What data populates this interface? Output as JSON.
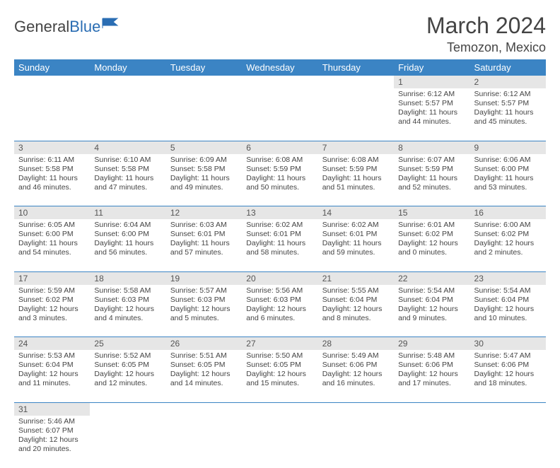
{
  "brand": {
    "part1": "General",
    "part2": "Blue"
  },
  "title": "March 2024",
  "location": "Temozon, Mexico",
  "colors": {
    "header_bg": "#3b84c4",
    "header_text": "#ffffff",
    "daynum_bg": "#e6e6e6",
    "row_divider": "#3b84c4",
    "text": "#444444",
    "brand_blue": "#2a6db3"
  },
  "weekdays": [
    "Sunday",
    "Monday",
    "Tuesday",
    "Wednesday",
    "Thursday",
    "Friday",
    "Saturday"
  ],
  "weeks": [
    [
      null,
      null,
      null,
      null,
      null,
      {
        "n": "1",
        "sr": "Sunrise: 6:12 AM",
        "ss": "Sunset: 5:57 PM",
        "dl": "Daylight: 11 hours and 44 minutes."
      },
      {
        "n": "2",
        "sr": "Sunrise: 6:12 AM",
        "ss": "Sunset: 5:57 PM",
        "dl": "Daylight: 11 hours and 45 minutes."
      }
    ],
    [
      {
        "n": "3",
        "sr": "Sunrise: 6:11 AM",
        "ss": "Sunset: 5:58 PM",
        "dl": "Daylight: 11 hours and 46 minutes."
      },
      {
        "n": "4",
        "sr": "Sunrise: 6:10 AM",
        "ss": "Sunset: 5:58 PM",
        "dl": "Daylight: 11 hours and 47 minutes."
      },
      {
        "n": "5",
        "sr": "Sunrise: 6:09 AM",
        "ss": "Sunset: 5:58 PM",
        "dl": "Daylight: 11 hours and 49 minutes."
      },
      {
        "n": "6",
        "sr": "Sunrise: 6:08 AM",
        "ss": "Sunset: 5:59 PM",
        "dl": "Daylight: 11 hours and 50 minutes."
      },
      {
        "n": "7",
        "sr": "Sunrise: 6:08 AM",
        "ss": "Sunset: 5:59 PM",
        "dl": "Daylight: 11 hours and 51 minutes."
      },
      {
        "n": "8",
        "sr": "Sunrise: 6:07 AM",
        "ss": "Sunset: 5:59 PM",
        "dl": "Daylight: 11 hours and 52 minutes."
      },
      {
        "n": "9",
        "sr": "Sunrise: 6:06 AM",
        "ss": "Sunset: 6:00 PM",
        "dl": "Daylight: 11 hours and 53 minutes."
      }
    ],
    [
      {
        "n": "10",
        "sr": "Sunrise: 6:05 AM",
        "ss": "Sunset: 6:00 PM",
        "dl": "Daylight: 11 hours and 54 minutes."
      },
      {
        "n": "11",
        "sr": "Sunrise: 6:04 AM",
        "ss": "Sunset: 6:00 PM",
        "dl": "Daylight: 11 hours and 56 minutes."
      },
      {
        "n": "12",
        "sr": "Sunrise: 6:03 AM",
        "ss": "Sunset: 6:01 PM",
        "dl": "Daylight: 11 hours and 57 minutes."
      },
      {
        "n": "13",
        "sr": "Sunrise: 6:02 AM",
        "ss": "Sunset: 6:01 PM",
        "dl": "Daylight: 11 hours and 58 minutes."
      },
      {
        "n": "14",
        "sr": "Sunrise: 6:02 AM",
        "ss": "Sunset: 6:01 PM",
        "dl": "Daylight: 11 hours and 59 minutes."
      },
      {
        "n": "15",
        "sr": "Sunrise: 6:01 AM",
        "ss": "Sunset: 6:02 PM",
        "dl": "Daylight: 12 hours and 0 minutes."
      },
      {
        "n": "16",
        "sr": "Sunrise: 6:00 AM",
        "ss": "Sunset: 6:02 PM",
        "dl": "Daylight: 12 hours and 2 minutes."
      }
    ],
    [
      {
        "n": "17",
        "sr": "Sunrise: 5:59 AM",
        "ss": "Sunset: 6:02 PM",
        "dl": "Daylight: 12 hours and 3 minutes."
      },
      {
        "n": "18",
        "sr": "Sunrise: 5:58 AM",
        "ss": "Sunset: 6:03 PM",
        "dl": "Daylight: 12 hours and 4 minutes."
      },
      {
        "n": "19",
        "sr": "Sunrise: 5:57 AM",
        "ss": "Sunset: 6:03 PM",
        "dl": "Daylight: 12 hours and 5 minutes."
      },
      {
        "n": "20",
        "sr": "Sunrise: 5:56 AM",
        "ss": "Sunset: 6:03 PM",
        "dl": "Daylight: 12 hours and 6 minutes."
      },
      {
        "n": "21",
        "sr": "Sunrise: 5:55 AM",
        "ss": "Sunset: 6:04 PM",
        "dl": "Daylight: 12 hours and 8 minutes."
      },
      {
        "n": "22",
        "sr": "Sunrise: 5:54 AM",
        "ss": "Sunset: 6:04 PM",
        "dl": "Daylight: 12 hours and 9 minutes."
      },
      {
        "n": "23",
        "sr": "Sunrise: 5:54 AM",
        "ss": "Sunset: 6:04 PM",
        "dl": "Daylight: 12 hours and 10 minutes."
      }
    ],
    [
      {
        "n": "24",
        "sr": "Sunrise: 5:53 AM",
        "ss": "Sunset: 6:04 PM",
        "dl": "Daylight: 12 hours and 11 minutes."
      },
      {
        "n": "25",
        "sr": "Sunrise: 5:52 AM",
        "ss": "Sunset: 6:05 PM",
        "dl": "Daylight: 12 hours and 12 minutes."
      },
      {
        "n": "26",
        "sr": "Sunrise: 5:51 AM",
        "ss": "Sunset: 6:05 PM",
        "dl": "Daylight: 12 hours and 14 minutes."
      },
      {
        "n": "27",
        "sr": "Sunrise: 5:50 AM",
        "ss": "Sunset: 6:05 PM",
        "dl": "Daylight: 12 hours and 15 minutes."
      },
      {
        "n": "28",
        "sr": "Sunrise: 5:49 AM",
        "ss": "Sunset: 6:06 PM",
        "dl": "Daylight: 12 hours and 16 minutes."
      },
      {
        "n": "29",
        "sr": "Sunrise: 5:48 AM",
        "ss": "Sunset: 6:06 PM",
        "dl": "Daylight: 12 hours and 17 minutes."
      },
      {
        "n": "30",
        "sr": "Sunrise: 5:47 AM",
        "ss": "Sunset: 6:06 PM",
        "dl": "Daylight: 12 hours and 18 minutes."
      }
    ],
    [
      {
        "n": "31",
        "sr": "Sunrise: 5:46 AM",
        "ss": "Sunset: 6:07 PM",
        "dl": "Daylight: 12 hours and 20 minutes."
      },
      null,
      null,
      null,
      null,
      null,
      null
    ]
  ]
}
